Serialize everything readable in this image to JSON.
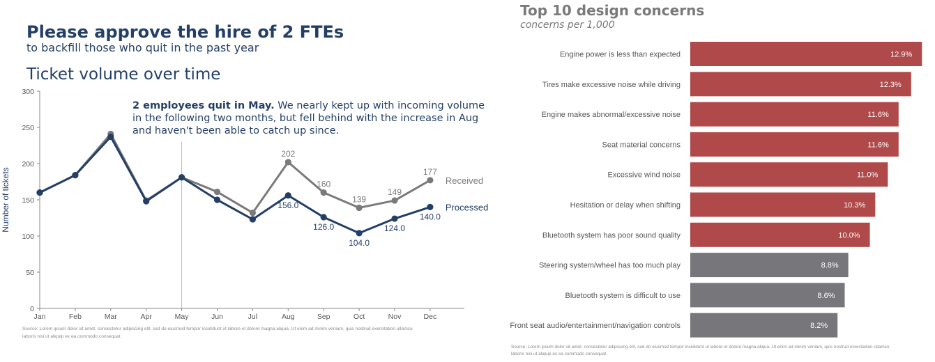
{
  "left_panel": {
    "headline": "Please approve the hire of 2 FTEs",
    "subheadline": "to backfill those who quit in the past year",
    "chart_title": "Ticket volume over time",
    "annotation": {
      "bold": "2 employees quit in May.",
      "line1_rest": " We nearly kept up with incoming volume",
      "line2": "in the following two months, but fell behind with the increase in Aug",
      "line3": "and haven't been able to catch up since."
    },
    "source_line1": "Source: Lorem ipsum dolor sit amet, consectetur adipiscing elit, sed do eiusmod tempor incididunt ut labore et dolore magna aliqua. Ut enim ad minim veniam, quis nostrud exercitation ullamco",
    "source_line2": "laboris nisi ut aliquip ex ea commodo consequat."
  },
  "right_panel": {
    "title": "Top 10 design concerns",
    "subtitle": "concerns per 1,000",
    "source_line1": "Source: Lorem ipsum dolor sit amet, consectetur adipiscing elit, sed do eiusmod tempor incididunt ut labore et dolore magna aliqua. Ut enim ad minim veniam, quis nostrud exercitation ullamco",
    "source_line2": "laboris nisi ut aliquip ex ea commodo consequat."
  },
  "colors": {
    "navy": "#243f66",
    "gray_line": "#7a7a7a",
    "bar_red": "#b04a4a",
    "bar_gray": "#77777b",
    "title_gray": "#7a7a7a"
  },
  "chart_data": [
    {
      "type": "line",
      "title": "Ticket volume over time",
      "xlabel": "",
      "ylabel": "Number of tickets",
      "categories": [
        "Jan",
        "Feb",
        "Mar",
        "Apr",
        "May",
        "Jun",
        "Jul",
        "Aug",
        "Sep",
        "Oct",
        "Nov",
        "Dec"
      ],
      "ylim": [
        0,
        300
      ],
      "yticks": [
        0,
        50,
        100,
        150,
        200,
        250,
        300
      ],
      "reference_line": "May",
      "series": [
        {
          "name": "Received",
          "values": [
            160,
            184,
            241,
            149,
            181,
            161,
            132,
            202,
            160,
            139,
            149,
            177
          ],
          "labels": {
            "7": "202",
            "8": "160",
            "9": "139",
            "10": "149",
            "11": "177"
          }
        },
        {
          "name": "Processed",
          "values": [
            160,
            184,
            237,
            148,
            181,
            150,
            123,
            156,
            126,
            104,
            124,
            140
          ],
          "labels": {
            "7": "156.0",
            "8": "126.0",
            "9": "104.0",
            "10": "124.0",
            "11": "140.0"
          }
        }
      ]
    },
    {
      "type": "bar",
      "orientation": "horizontal",
      "title": "Top 10 design concerns",
      "subtitle": "concerns per 1,000",
      "categories": [
        "Engine power is less than expected",
        "Tires make excessive noise while driving",
        "Engine makes abnormal/excessive noise",
        "Seat material concerns",
        "Excessive wind noise",
        "Hesitation or delay when shifting",
        "Bluetooth system has poor sound quality",
        "Steering system/wheel has too much play",
        "Bluetooth system is difficult to use",
        "Front seat audio/entertainment/navigation controls"
      ],
      "values": [
        12.9,
        12.3,
        11.6,
        11.6,
        11.0,
        10.3,
        10.0,
        8.8,
        8.6,
        8.2
      ],
      "value_labels": [
        "12.9%",
        "12.3%",
        "11.6%",
        "11.6%",
        "11.0%",
        "10.3%",
        "10.0%",
        "8.8%",
        "8.6%",
        "8.2%"
      ],
      "highlighted_count": 7,
      "xlim": [
        0,
        13.2
      ]
    }
  ]
}
